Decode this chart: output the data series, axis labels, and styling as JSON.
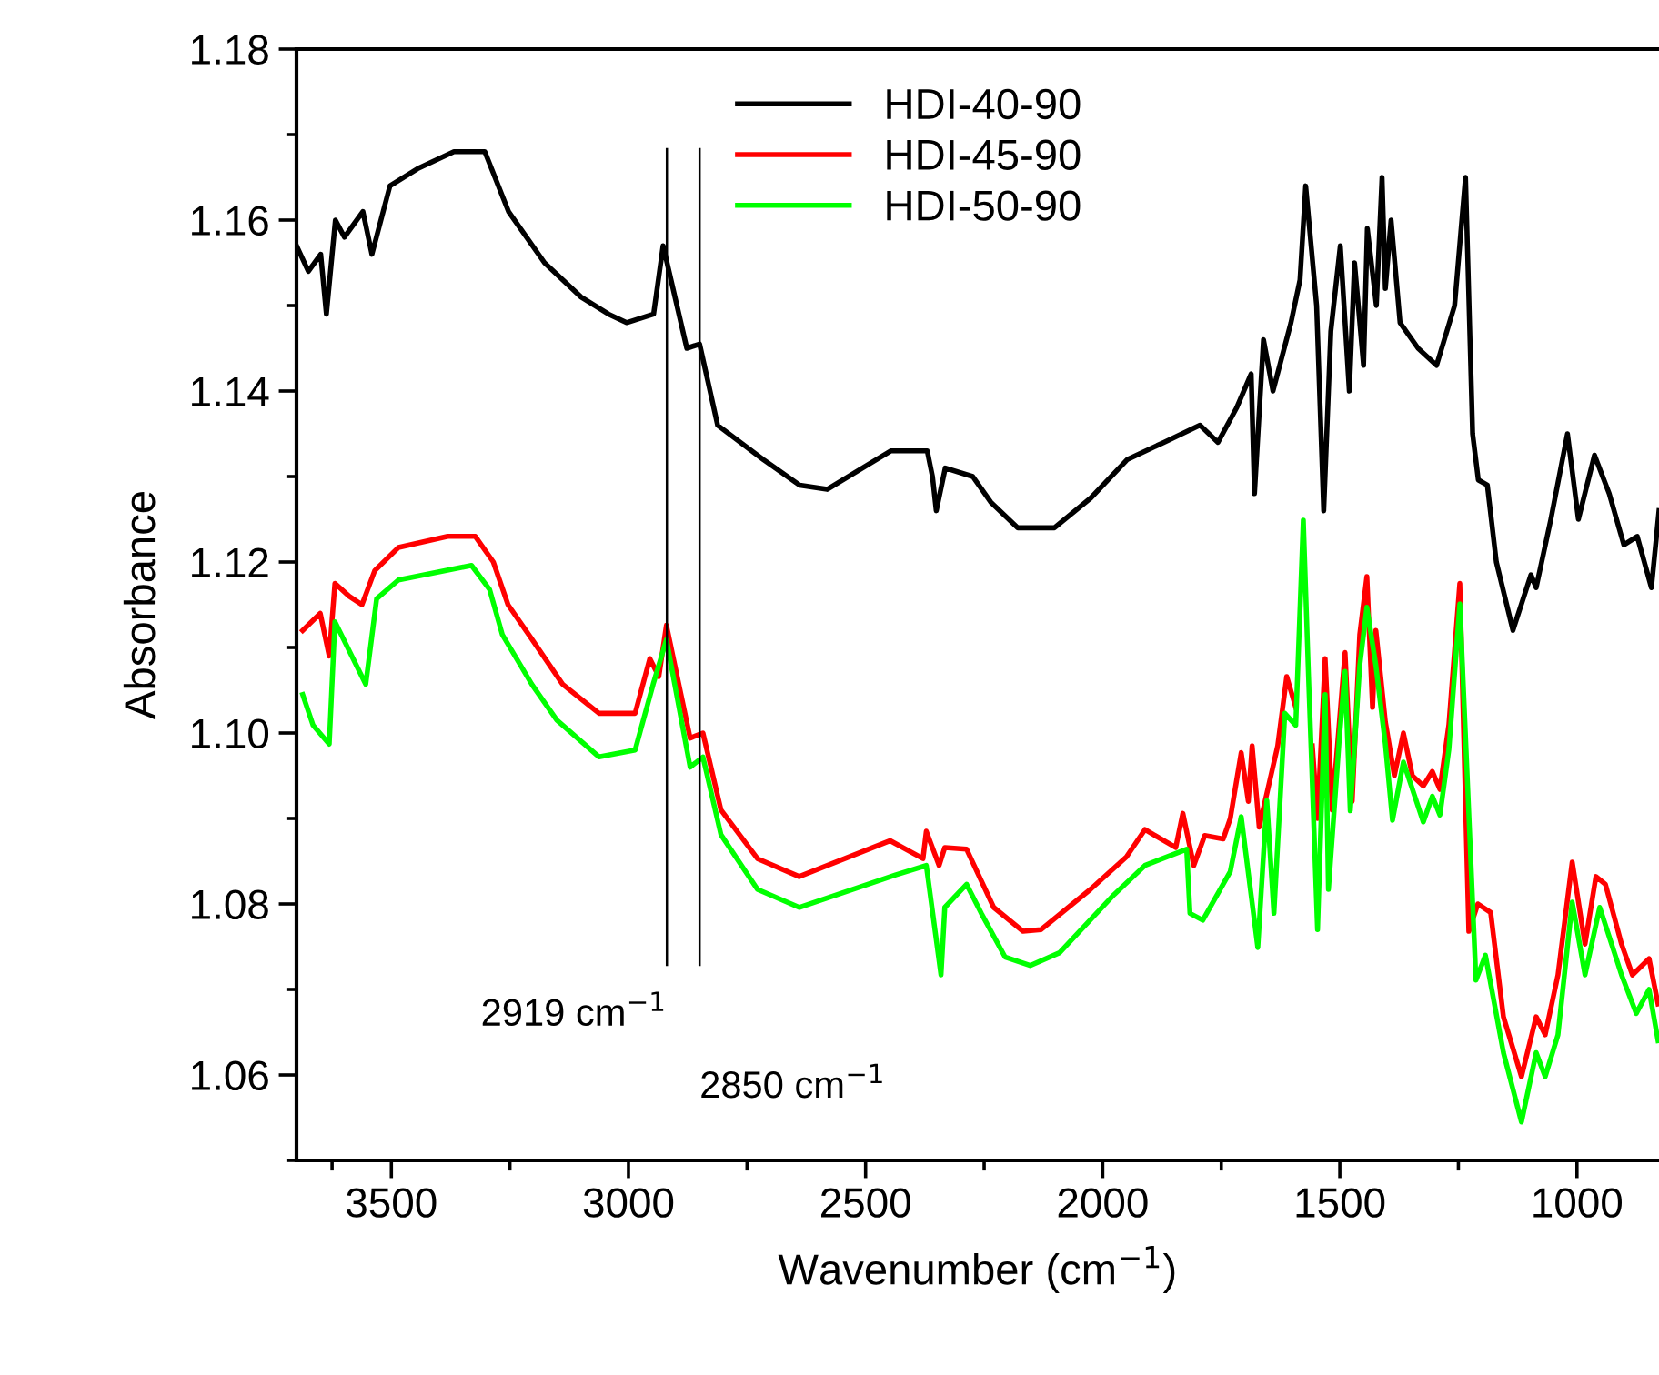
{
  "chart_data": {
    "type": "line",
    "xlabel": "Wavenumber (cm$^{−1}$)",
    "ylabel": "Absorbance",
    "xlim": [
      3700,
      827
    ],
    "ylim": [
      1.05,
      1.18
    ],
    "xticks": [
      {
        "value": 3625,
        "label": null
      },
      3500,
      {
        "value": 3250,
        "label": null
      },
      3000,
      {
        "value": 2750,
        "label": null
      },
      2500,
      {
        "value": 2250,
        "label": null
      },
      2000,
      {
        "value": 1750,
        "label": null
      },
      1500,
      {
        "value": 1250,
        "label": null
      },
      1000
    ],
    "yticks": [
      {
        "value": 1.05,
        "label": null
      },
      1.06,
      {
        "value": 1.07,
        "label": null
      },
      1.08,
      {
        "value": 1.09,
        "label": null
      },
      {
        "value": 1.1,
        "label": "1.10"
      },
      {
        "value": 1.11,
        "label": null
      },
      1.12,
      {
        "value": 1.13,
        "label": null
      },
      1.14,
      {
        "value": 1.15,
        "label": null
      },
      1.16,
      {
        "value": 1.17,
        "label": null
      },
      1.18
    ],
    "legend": "top",
    "grid": false,
    "marker": "none",
    "line_style": "solid",
    "ref_lines": [
      {
        "axis": "x",
        "value": 2919,
        "label": "2919 cm$^{−1}$",
        "color": "#000000"
      },
      {
        "axis": "x",
        "value": 2850,
        "label": "2850 cm$^{−1}$",
        "color": "#000000"
      }
    ],
    "series": [
      {
        "name": "HDI-40-90",
        "color": "#000000",
        "x": [
          3700,
          3675,
          3649,
          3637,
          3618,
          3599,
          3560,
          3541,
          3503,
          3445,
          3368,
          3303,
          3253,
          3177,
          3100,
          3042,
          3004,
          2947,
          2927,
          2877,
          2850,
          2812,
          2716,
          2639,
          2581,
          2447,
          2370,
          2359,
          2351,
          2332,
          2274,
          2236,
          2179,
          2102,
          2025,
          1948,
          1871,
          1795,
          1757,
          1718,
          1687,
          1680,
          1661,
          1641,
          1603,
          1584,
          1572,
          1549,
          1534,
          1519,
          1499,
          1480,
          1469,
          1450,
          1442,
          1423,
          1411,
          1404,
          1392,
          1373,
          1335,
          1296,
          1258,
          1235,
          1220,
          1208,
          1189,
          1170,
          1135,
          1097,
          1086,
          1055,
          1020,
          997,
          963,
          932,
          901,
          873,
          843,
          827
        ],
        "values": [
          1.157,
          1.154,
          1.156,
          1.149,
          1.16,
          1.158,
          1.161,
          1.156,
          1.164,
          1.166,
          1.168,
          1.168,
          1.161,
          1.155,
          1.151,
          1.149,
          1.148,
          1.149,
          1.157,
          1.145,
          1.1455,
          1.136,
          1.132,
          1.129,
          1.1285,
          1.133,
          1.133,
          1.13,
          1.126,
          1.131,
          1.13,
          1.127,
          1.124,
          1.124,
          1.1275,
          1.132,
          1.134,
          1.136,
          1.134,
          1.138,
          1.142,
          1.128,
          1.146,
          1.14,
          1.148,
          1.153,
          1.164,
          1.15,
          1.126,
          1.147,
          1.157,
          1.14,
          1.155,
          1.143,
          1.159,
          1.15,
          1.165,
          1.152,
          1.16,
          1.148,
          1.145,
          1.143,
          1.15,
          1.165,
          1.135,
          1.1296,
          1.129,
          1.12,
          1.112,
          1.1185,
          1.117,
          1.125,
          1.135,
          1.125,
          1.1325,
          1.128,
          1.122,
          1.123,
          1.117,
          1.126
        ]
      },
      {
        "name": "HDI-45-90",
        "color": "#ff0000",
        "x": [
          3687,
          3650,
          3631,
          3619,
          3589,
          3562,
          3535,
          3485,
          3381,
          3323,
          3285,
          3254,
          3204,
          3139,
          3062,
          2986,
          2955,
          2936,
          2920,
          2870,
          2843,
          2805,
          2728,
          2640,
          2448,
          2379,
          2372,
          2345,
          2333,
          2287,
          2230,
          2168,
          2130,
          2026,
          1950,
          1911,
          1846,
          1831,
          1808,
          1785,
          1746,
          1731,
          1708,
          1693,
          1685,
          1670,
          1631,
          1612,
          1593,
          1577,
          1558,
          1547,
          1531,
          1516,
          1489,
          1474,
          1458,
          1443,
          1431,
          1424,
          1404,
          1385,
          1366,
          1347,
          1324,
          1305,
          1289,
          1270,
          1247,
          1228,
          1209,
          1182,
          1155,
          1117,
          1086,
          1067,
          1040,
          1010,
          983,
          960,
          940,
          906,
          883,
          848,
          829
        ],
        "values": [
          1.112,
          1.114,
          1.109,
          1.1175,
          1.116,
          1.115,
          1.119,
          1.1217,
          1.123,
          1.123,
          1.12,
          1.115,
          1.111,
          1.1057,
          1.1023,
          1.1023,
          1.1087,
          1.1066,
          1.1126,
          1.0994,
          1.1,
          1.091,
          1.0853,
          1.0832,
          1.0874,
          1.0853,
          1.0885,
          1.0845,
          1.0866,
          1.0864,
          1.0796,
          1.0768,
          1.077,
          1.0817,
          1.0855,
          1.0887,
          1.0866,
          1.0906,
          1.0845,
          1.088,
          1.0876,
          1.09,
          1.0977,
          1.092,
          1.0985,
          1.089,
          1.0985,
          1.1066,
          1.103,
          null,
          1.0985,
          1.09,
          1.1087,
          1.091,
          1.1094,
          1.092,
          1.1115,
          1.1183,
          1.103,
          1.112,
          1.1013,
          1.095,
          1.1,
          1.095,
          1.0938,
          1.0955,
          1.0934,
          1.101,
          1.1175,
          1.0768,
          1.08,
          1.079,
          1.0668,
          1.0598,
          1.0668,
          1.0647,
          1.0717,
          1.0849,
          1.0753,
          1.0832,
          1.0823,
          1.0753,
          1.0717,
          1.0736,
          1.0683
        ]
      },
      {
        "name": "HDI-50-90",
        "color": "#00ff00",
        "x": [
          3687,
          3665,
          3631,
          3619,
          3554,
          3531,
          3485,
          3331,
          3293,
          3266,
          3204,
          3151,
          3062,
          2986,
          2948,
          2920,
          2870,
          2843,
          2805,
          2728,
          2640,
          2437,
          2372,
          2341,
          2333,
          2287,
          2256,
          2206,
          2153,
          2091,
          1976,
          1911,
          1823,
          1816,
          1789,
          1731,
          1708,
          1673,
          1654,
          1639,
          1616,
          1593,
          1577,
          1566,
          1547,
          1531,
          1524,
          1501,
          1489,
          1478,
          1458,
          1443,
          1424,
          1404,
          1389,
          1366,
          1324,
          1305,
          1289,
          1270,
          1247,
          1213,
          1193,
          1155,
          1117,
          1086,
          1067,
          1040,
          1010,
          983,
          952,
          906,
          875,
          848,
          829
        ],
        "values": [
          1.1045,
          1.1009,
          1.0987,
          1.113,
          1.1057,
          1.1157,
          1.1179,
          1.1196,
          1.1168,
          1.1115,
          1.1057,
          1.1015,
          1.0972,
          1.098,
          1.1057,
          1.1109,
          1.096,
          1.0972,
          1.0881,
          1.0817,
          1.0796,
          1.0834,
          1.0845,
          1.0717,
          1.0796,
          1.0823,
          1.0789,
          1.0738,
          1.0728,
          1.0743,
          1.0811,
          1.0845,
          1.0864,
          1.0789,
          1.0781,
          1.0838,
          1.0902,
          1.0749,
          1.0921,
          1.0789,
          1.1023,
          1.1009,
          1.1249,
          1.1066,
          1.077,
          1.1045,
          1.0817,
          1.0994,
          1.1072,
          1.0909,
          1.1079,
          1.1147,
          1.1079,
          1.0987,
          1.0898,
          1.0966,
          1.0896,
          1.0926,
          1.0904,
          1.0981,
          1.1151,
          1.0711,
          1.074,
          1.0626,
          1.0545,
          1.0626,
          1.0598,
          1.0647,
          1.0802,
          1.0717,
          1.0796,
          1.0717,
          1.0672,
          1.07,
          1.064
        ]
      }
    ]
  }
}
